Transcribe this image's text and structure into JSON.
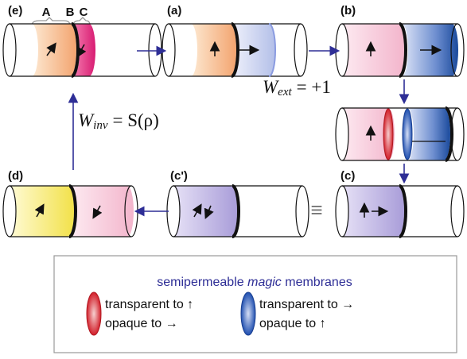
{
  "panels": [
    {
      "label": "(e)"
    },
    {
      "label": "(a)"
    },
    {
      "label": "(b)"
    },
    {
      "label": "(d)"
    },
    {
      "label": "(c')"
    },
    {
      "label": "(c)"
    }
  ],
  "segments": [
    "A",
    "B",
    "C"
  ],
  "equations": {
    "w_ext": {
      "symbol": "W",
      "subscript": "ext",
      "rhs": "= +1"
    },
    "w_inv": {
      "symbol": "W",
      "subscript": "inv",
      "rhs": "= S(ρ)"
    }
  },
  "equivalence": "≡",
  "legend": {
    "title": {
      "before": "semipermeable",
      "emphasis": "magic",
      "after": "membranes"
    },
    "red": {
      "line1": "transparent to ↑",
      "line2": "opaque to →"
    },
    "blue": {
      "line1": "transparent to →",
      "line2": "opaque to ↑"
    }
  }
}
